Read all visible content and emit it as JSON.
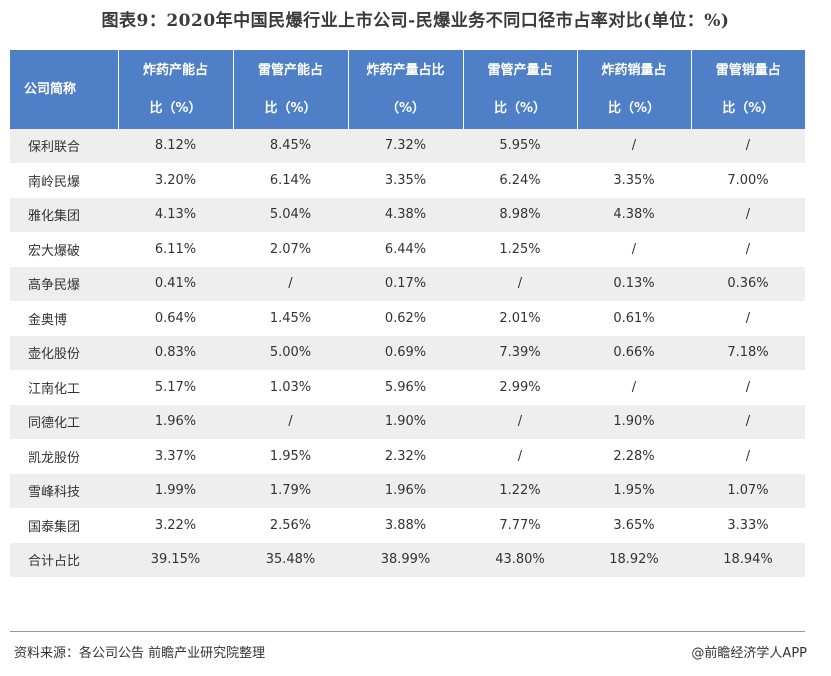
{
  "title": "图表9：2020年中国民爆行业上市公司-民爆业务不同口径市占率对比(单位：%)",
  "table": {
    "headers": [
      [
        "公司简称"
      ],
      [
        "炸药产能占",
        "比（%）"
      ],
      [
        "雷管产能占",
        "比（%）"
      ],
      [
        "炸药产量占比",
        "（%）"
      ],
      [
        "雷管产量占",
        "比（%）"
      ],
      [
        "炸药销量占",
        "比（%）"
      ],
      [
        "雷管销量占",
        "比（%）"
      ]
    ],
    "rows": [
      [
        "保利联合",
        "8.12%",
        "8.45%",
        "7.32%",
        "5.95%",
        "/",
        "/"
      ],
      [
        "南岭民爆",
        "3.20%",
        "6.14%",
        "3.35%",
        "6.24%",
        "3.35%",
        "7.00%"
      ],
      [
        "雅化集团",
        "4.13%",
        "5.04%",
        "4.38%",
        "8.98%",
        "4.38%",
        "/"
      ],
      [
        "宏大爆破",
        "6.11%",
        "2.07%",
        "6.44%",
        "1.25%",
        "/",
        "/"
      ],
      [
        "高争民爆",
        "0.41%",
        "/",
        "0.17%",
        "/",
        "0.13%",
        "0.36%"
      ],
      [
        "金奥博",
        "0.64%",
        "1.45%",
        "0.62%",
        "2.01%",
        "0.61%",
        "/"
      ],
      [
        "壶化股份",
        "0.83%",
        "5.00%",
        "0.69%",
        "7.39%",
        "0.66%",
        "7.18%"
      ],
      [
        "江南化工",
        "5.17%",
        "1.03%",
        "5.96%",
        "2.99%",
        "/",
        "/"
      ],
      [
        "同德化工",
        "1.96%",
        "/",
        "1.90%",
        "/",
        "1.90%",
        "/"
      ],
      [
        "凯龙股份",
        "3.37%",
        "1.95%",
        "2.32%",
        "/",
        "2.28%",
        "/"
      ],
      [
        "雪峰科技",
        "1.99%",
        "1.79%",
        "1.96%",
        "1.22%",
        "1.95%",
        "1.07%"
      ],
      [
        "国泰集团",
        "3.22%",
        "2.56%",
        "3.88%",
        "7.77%",
        "3.65%",
        "3.33%"
      ],
      [
        "合计占比",
        "39.15%",
        "35.48%",
        "38.99%",
        "43.80%",
        "18.92%",
        "18.94%"
      ]
    ]
  },
  "footer": {
    "source": "资料来源：各公司公告 前瞻产业研究院整理",
    "brand": "@前瞻经济学人APP"
  },
  "watermark": "前瞻产业研究院",
  "colors": {
    "header_bg": "#4f7fc6",
    "stripe": "#eeeeee"
  }
}
